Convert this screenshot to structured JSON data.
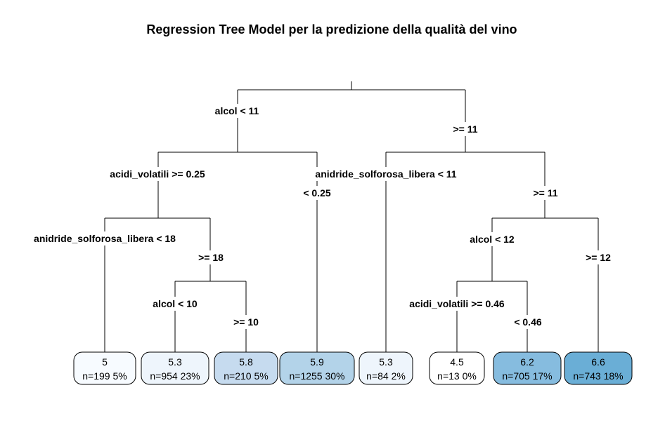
{
  "title": "Regression Tree Model per la predizione della qualità del vino",
  "splits": {
    "root_left": "alcol < 11",
    "root_right": ">= 11",
    "l_left": "acidi_volatili >= 0.25",
    "l_right": "< 0.25",
    "r_left": "anidride_solforosa_libera < 11",
    "r_right": ">= 11",
    "ll_left": "anidride_solforosa_libera < 18",
    "ll_right": ">= 18",
    "llr_left": "alcol < 10",
    "llr_right": ">= 10",
    "rr_left": "alcol < 12",
    "rr_right": ">= 12",
    "rrl_left": "acidi_volatili >= 0.46",
    "rrl_right": "< 0.46"
  },
  "leaves": [
    {
      "value": "5",
      "n": "n=199",
      "pct": "5%",
      "color": "#f7fbff"
    },
    {
      "value": "5.3",
      "n": "n=954",
      "pct": "23%",
      "color": "#eef5fc"
    },
    {
      "value": "5.8",
      "n": "n=210",
      "pct": "5%",
      "color": "#c6dbef"
    },
    {
      "value": "5.9",
      "n": "n=1255",
      "pct": "30%",
      "color": "#b3d3e9"
    },
    {
      "value": "5.3",
      "n": "n=84",
      "pct": "2%",
      "color": "#eef5fc"
    },
    {
      "value": "4.5",
      "n": "n=13",
      "pct": "0%",
      "color": "#ffffff"
    },
    {
      "value": "6.2",
      "n": "n=705",
      "pct": "17%",
      "color": "#86bcdf"
    },
    {
      "value": "6.6",
      "n": "n=743",
      "pct": "18%",
      "color": "#6aaed6"
    }
  ]
}
